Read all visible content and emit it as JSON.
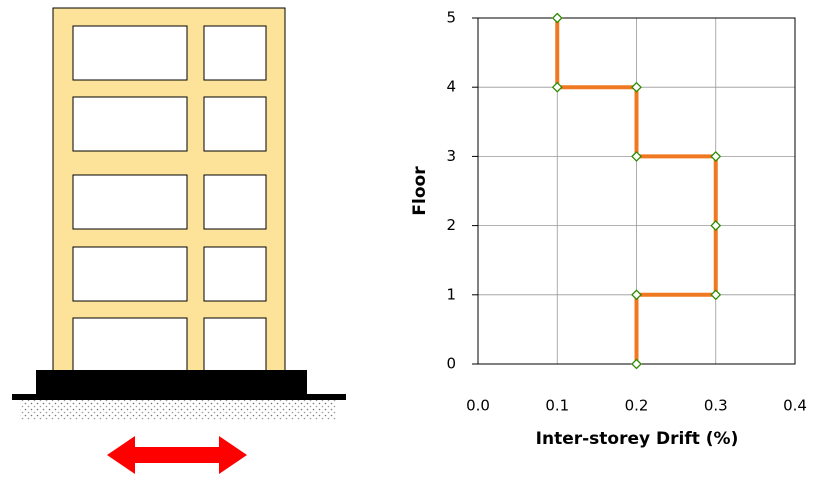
{
  "chart_data": {
    "type": "line",
    "x": [
      0.2,
      0.2,
      0.3,
      0.3,
      0.3,
      0.2,
      0.2,
      0.1,
      0.1
    ],
    "series": [
      {
        "color": "#f07820",
        "marker_edge_color": "#2e8b00",
        "values": [
          0,
          1,
          1,
          2,
          3,
          3,
          4,
          4,
          5
        ]
      }
    ],
    "x_label": "Inter-storey Drift (%)",
    "y_label": "Floor",
    "xlim": [
      0,
      0.4
    ],
    "xticks": [
      {
        "value": 0,
        "label": "0.0"
      },
      0.1,
      0.2,
      0.3,
      0.4
    ],
    "ylim": [
      0,
      5
    ],
    "yticks": [
      0,
      1,
      2,
      3,
      4,
      5
    ],
    "grid": true
  }
}
